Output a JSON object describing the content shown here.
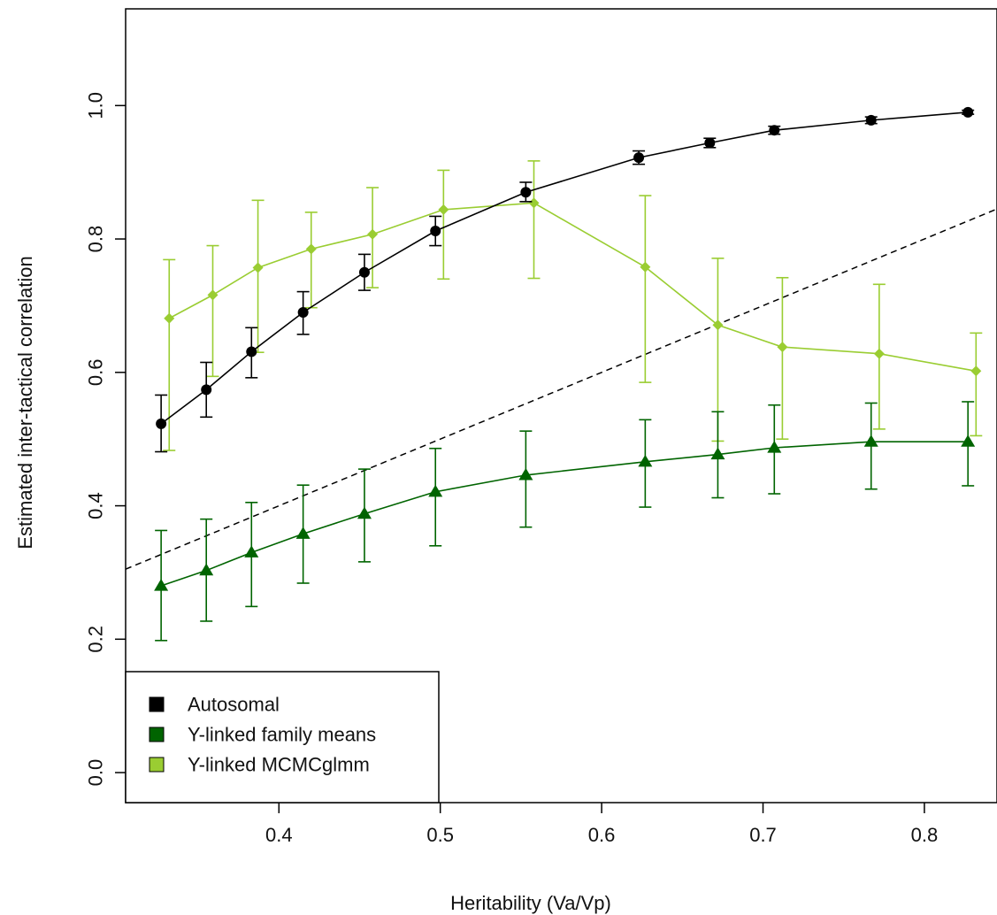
{
  "chart_data": {
    "type": "line",
    "title": "",
    "xlabel": "Heritability (Va/Vp)",
    "ylabel": "Estimated inter-tactical correlation",
    "xlim": [
      0.305,
      0.845
    ],
    "ylim": [
      -0.045,
      1.145
    ],
    "x_ticks": [
      0.4,
      0.5,
      0.6,
      0.7,
      0.8
    ],
    "x_tick_labels": [
      "0.4",
      "0.5",
      "0.6",
      "0.7",
      "0.8"
    ],
    "y_ticks": [
      0.0,
      0.2,
      0.4,
      0.6,
      0.8,
      1.0
    ],
    "y_tick_labels": [
      "0.0",
      "0.2",
      "0.4",
      "0.6",
      "0.8",
      "1.0"
    ],
    "grid": false,
    "legend_position": "bottom-left",
    "reference_line": {
      "style": "dashed",
      "color": "#000000",
      "from": [
        0.305,
        0.305
      ],
      "to": [
        0.845,
        0.845
      ]
    },
    "series": [
      {
        "name": "Autosomal",
        "color": "#000000",
        "marker": "circle",
        "x": [
          0.327,
          0.355,
          0.383,
          0.415,
          0.453,
          0.497,
          0.553,
          0.623,
          0.667,
          0.707,
          0.767,
          0.827
        ],
        "y": [
          0.523,
          0.574,
          0.631,
          0.69,
          0.75,
          0.812,
          0.87,
          0.922,
          0.944,
          0.963,
          0.978,
          0.99
        ],
        "lower": [
          0.481,
          0.533,
          0.592,
          0.657,
          0.723,
          0.79,
          0.856,
          0.912,
          0.937,
          0.957,
          0.973,
          0.987
        ],
        "upper": [
          0.566,
          0.615,
          0.667,
          0.721,
          0.777,
          0.834,
          0.885,
          0.932,
          0.951,
          0.969,
          0.983,
          0.993
        ]
      },
      {
        "name": "Y-linked family means",
        "color": "#006400",
        "marker": "triangle",
        "x": [
          0.327,
          0.355,
          0.383,
          0.415,
          0.453,
          0.497,
          0.553,
          0.627,
          0.672,
          0.707,
          0.767,
          0.827
        ],
        "y": [
          0.28,
          0.303,
          0.33,
          0.358,
          0.388,
          0.421,
          0.446,
          0.466,
          0.477,
          0.487,
          0.496,
          0.496
        ],
        "lower": [
          0.198,
          0.227,
          0.249,
          0.284,
          0.316,
          0.34,
          0.368,
          0.398,
          0.412,
          0.418,
          0.425,
          0.43
        ],
        "upper": [
          0.363,
          0.38,
          0.405,
          0.431,
          0.455,
          0.486,
          0.512,
          0.529,
          0.541,
          0.551,
          0.554,
          0.556
        ]
      },
      {
        "name": "Y-linked MCMCglmm",
        "color": "#9ACD32",
        "marker": "diamond",
        "x": [
          0.332,
          0.359,
          0.387,
          0.42,
          0.458,
          0.502,
          0.558,
          0.627,
          0.672,
          0.712,
          0.772,
          0.832
        ],
        "y": [
          0.681,
          0.716,
          0.757,
          0.785,
          0.807,
          0.844,
          0.854,
          0.758,
          0.671,
          0.638,
          0.628,
          0.602
        ],
        "lower": [
          0.483,
          0.594,
          0.63,
          0.697,
          0.727,
          0.74,
          0.741,
          0.585,
          0.497,
          0.5,
          0.515,
          0.505
        ],
        "upper": [
          0.769,
          0.79,
          0.858,
          0.84,
          0.877,
          0.903,
          0.917,
          0.865,
          0.771,
          0.742,
          0.732,
          0.659
        ]
      }
    ]
  }
}
